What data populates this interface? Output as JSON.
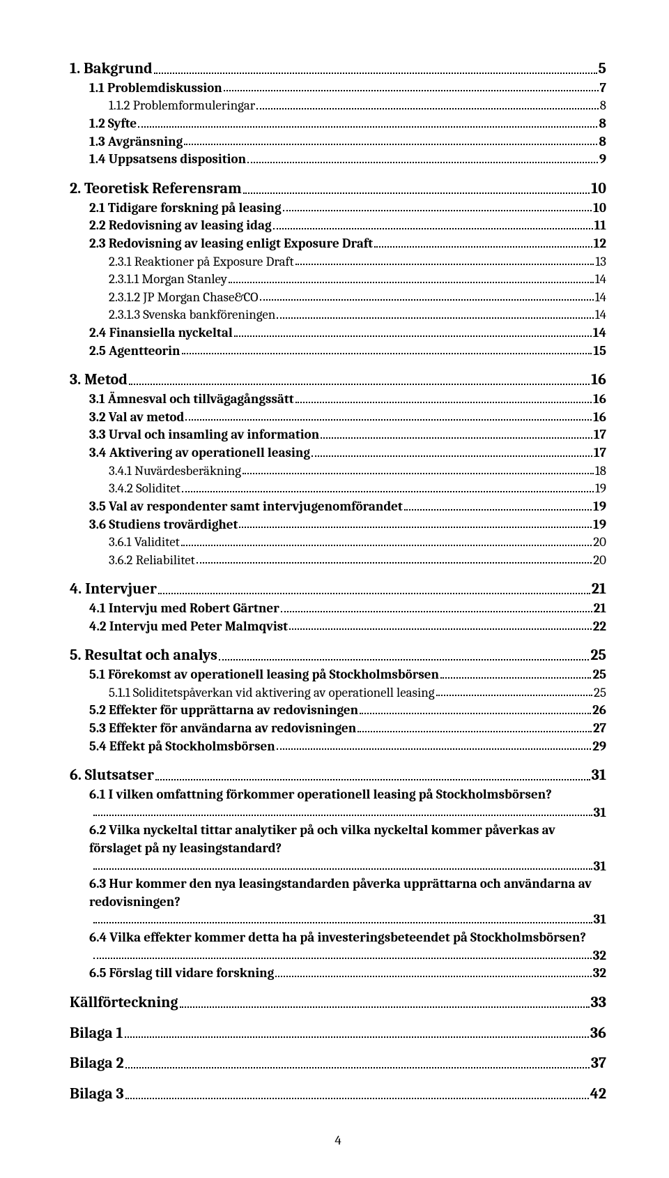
{
  "pageNumber": "4",
  "tocLineFonts": {
    "lvl1_fontsize": 22,
    "lvl2_fontsize": 19,
    "lvl3_fontsize": 19
  },
  "colors": {
    "text": "#000000",
    "background": "#ffffff",
    "dots": "#000000"
  },
  "toc": [
    {
      "level": 1,
      "label": "1. Bakgrund",
      "page": "5"
    },
    {
      "level": 2,
      "label": "1.1 Problemdiskussion",
      "page": "7"
    },
    {
      "level": 3,
      "label": "1.1.2 Problemformuleringar",
      "page": "8"
    },
    {
      "level": 2,
      "label": "1.2 Syfte",
      "page": "8"
    },
    {
      "level": 2,
      "label": "1.3 Avgränsning",
      "page": "8"
    },
    {
      "level": 2,
      "label": "1.4 Uppsatsens disposition",
      "page": "9"
    },
    {
      "level": 1,
      "label": "2. Teoretisk Referensram",
      "page": "10"
    },
    {
      "level": 2,
      "label": "2.1 Tidigare forskning på leasing",
      "page": "10"
    },
    {
      "level": 2,
      "label": "2.2 Redovisning av leasing idag",
      "page": "11"
    },
    {
      "level": 2,
      "label": "2.3 Redovisning av leasing enligt Exposure Draft",
      "page": "12"
    },
    {
      "level": 3,
      "label": "2.3.1 Reaktioner på Exposure Draft",
      "page": "13"
    },
    {
      "level": 3,
      "label": "2.3.1.1 Morgan Stanley",
      "page": "14"
    },
    {
      "level": 3,
      "label": "2.3.1.2 JP Morgan Chase&CO",
      "page": "14"
    },
    {
      "level": 3,
      "label": "2.3.1.3 Svenska bankföreningen",
      "page": "14"
    },
    {
      "level": 2,
      "label": "2.4 Finansiella nyckeltal",
      "page": "14"
    },
    {
      "level": 2,
      "label": "2.5 Agentteorin",
      "page": "15"
    },
    {
      "level": 1,
      "label": "3. Metod",
      "page": "16"
    },
    {
      "level": 2,
      "label": "3.1 Ämnesval och tillvägagångssätt",
      "page": "16"
    },
    {
      "level": 2,
      "label": "3.2 Val av metod",
      "page": "16"
    },
    {
      "level": 2,
      "label": "3.3 Urval och insamling av information",
      "page": "17"
    },
    {
      "level": 2,
      "label": "3.4 Aktivering av operationell leasing",
      "page": "17"
    },
    {
      "level": 3,
      "label": "3.4.1 Nuvärdesberäkning",
      "page": "18"
    },
    {
      "level": 3,
      "label": "3.4.2 Soliditet",
      "page": "19"
    },
    {
      "level": 2,
      "label": "3.5 Val av respondenter samt intervjugenomförandet",
      "page": "19"
    },
    {
      "level": 2,
      "label": "3.6 Studiens trovärdighet",
      "page": "19"
    },
    {
      "level": 3,
      "label": "3.6.1 Validitet",
      "page": "20"
    },
    {
      "level": 3,
      "label": "3.6.2 Reliabilitet",
      "page": "20"
    },
    {
      "level": 1,
      "label": "4. Intervjuer",
      "page": "21"
    },
    {
      "level": 2,
      "label": "4.1 Intervju med Robert Gärtner",
      "page": "21"
    },
    {
      "level": 2,
      "label": "4.2 Intervju med Peter Malmqvist",
      "page": "22"
    },
    {
      "level": 1,
      "label": "5. Resultat och analys",
      "page": "25"
    },
    {
      "level": 2,
      "label": "5.1 Förekomst av operationell leasing på Stockholmsbörsen",
      "page": "25"
    },
    {
      "level": 3,
      "label": "5.1.1 Soliditetspåverkan vid aktivering av operationell leasing",
      "page": "25"
    },
    {
      "level": 2,
      "label": "5.2 Effekter för upprättarna av redovisningen",
      "page": "26"
    },
    {
      "level": 2,
      "label": "5.3 Effekter för användarna av redovisningen",
      "page": "27"
    },
    {
      "level": 2,
      "label": "5.4 Effekt på Stockholmsbörsen",
      "page": "29"
    },
    {
      "level": 1,
      "label": "6. Slutsatser",
      "page": "31"
    },
    {
      "level": 2,
      "label": "6.1 I vilken omfattning förkommer operationell leasing på Stockholmsbörsen?",
      "page": "31",
      "wrap": true
    },
    {
      "level": 2,
      "label": "6.2 Vilka nyckeltal tittar analytiker på och vilka nyckeltal kommer påverkas av förslaget på ny leasingstandard?",
      "page": "31",
      "wrap": true
    },
    {
      "level": 2,
      "label": "6.3 Hur kommer den nya leasingstandarden påverka upprättarna och användarna av redovisningen?",
      "page": "31",
      "wrap": true
    },
    {
      "level": 2,
      "label": "6.4 Vilka effekter kommer detta ha på investeringsbeteendet på Stockholmsbörsen?",
      "page": "32",
      "wrap": true
    },
    {
      "level": 2,
      "label": "6.5 Förslag till vidare forskning",
      "page": "32"
    },
    {
      "level": 1,
      "label": "Källförteckning",
      "page": "33"
    },
    {
      "level": 1,
      "label": "Bilaga 1",
      "page": "36"
    },
    {
      "level": 1,
      "label": "Bilaga 2",
      "page": "37"
    },
    {
      "level": 1,
      "label": "Bilaga 3",
      "page": "42"
    }
  ]
}
